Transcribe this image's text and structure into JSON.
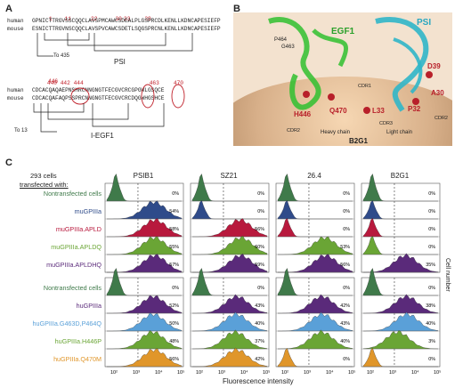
{
  "panel_a": {
    "letter": "A",
    "numbers_top": [
      "1",
      "11",
      "22",
      "30",
      "33",
      "39"
    ],
    "human_label": "human",
    "mouse_label": "mouse",
    "human_seq": "GPNICTTRGVSSCQQCLAVSPMCAWCSDEALPLGSPRCDLKENLLKDNCAPESIEFP",
    "mouse_seq": "ESNICTTRGVNSCQQCLAVSPVCAWCSDETLSQGSPRCNLKENLLKDNCAPESIEFP",
    "arrow_note": "To 435",
    "domain1": "PSI",
    "numbers_bottom": [
      "440",
      "442",
      "444",
      "446",
      "463",
      "470"
    ],
    "human_seq2": "CDCACQAQAEPNSHRCNNGNGTFECGVCRCGPGWLGSQCE",
    "mouse_seq2": "CDCACQAFAQPSSPRCNNGNGTFECGVCRCDQGWHGSHCE",
    "arrow_note2": "To 13",
    "domain2": "I-EGF1"
  },
  "panel_b": {
    "letter": "B",
    "labels": {
      "egf1": "EGF1",
      "psi": "PSI",
      "p464": "P464",
      "g463": "G463",
      "d39": "D39",
      "h446": "H446",
      "q470": "Q470",
      "l33": "L33",
      "p32": "P32",
      "a30": "A30",
      "cdr1": "CDR1",
      "cdr2": "CDR2",
      "cdr3": "CDR3",
      "cdr2b": "CDR2",
      "heavy": "Heavy chain",
      "light": "Light chain",
      "b2g1": "B2G1"
    }
  },
  "panel_c": {
    "letter": "C",
    "header_line1": "293 cells",
    "header_line2": "transfected with:",
    "columns": [
      "PSIB1",
      "SZ21",
      "26.4",
      "B2G1"
    ],
    "ylabel": "Cell number",
    "xlabel": "Fluorescence intensity",
    "x_ticks": [
      "10²",
      "10³",
      "10⁴",
      "10⁵"
    ],
    "top_group": {
      "samples": [
        {
          "name": "Nontransfected cells",
          "color": "#3f7a4a"
        },
        {
          "name": "muGPIIIa",
          "color": "#2f4b8a"
        },
        {
          "name": "muGPIIIa.APLD",
          "color": "#b8193d"
        },
        {
          "name": "muGPIIIa.APLDQ",
          "color": "#6aa535"
        },
        {
          "name": "muGPIIIa.APLDHQ",
          "color": "#5a2a7a"
        }
      ],
      "percents": [
        [
          "0%",
          "54%",
          "58%",
          "55%",
          "57%"
        ],
        [
          "0%",
          "0%",
          "56%",
          "60%",
          "59%"
        ],
        [
          "0%",
          "0%",
          "0%",
          "53%",
          "56%"
        ],
        [
          "0%",
          "0%",
          "0%",
          "0%",
          "35%"
        ]
      ]
    },
    "bottom_group": {
      "samples": [
        {
          "name": "Nontransfected cells",
          "color": "#3f7a4a"
        },
        {
          "name": "huGPIIIa",
          "color": "#5a2a7a"
        },
        {
          "name": "huGPIIIa.G463D,P464Q",
          "color": "#5aa0d8"
        },
        {
          "name": "huGPIIIa.H446P",
          "color": "#6aa535"
        },
        {
          "name": "huGPIIIa.Q470M",
          "color": "#e0962a"
        }
      ],
      "percents": [
        [
          "0%",
          "52%",
          "50%",
          "48%",
          "56%"
        ],
        [
          "0%",
          "43%",
          "40%",
          "37%",
          "42%"
        ],
        [
          "0%",
          "42%",
          "43%",
          "40%",
          "0%"
        ],
        [
          "0%",
          "38%",
          "40%",
          "3%",
          "0%"
        ]
      ]
    }
  },
  "chart_data": {
    "type": "area",
    "title": "",
    "xlabel": "Fluorescence intensity",
    "ylabel": "Cell number",
    "x_scale": "log",
    "series": []
  }
}
